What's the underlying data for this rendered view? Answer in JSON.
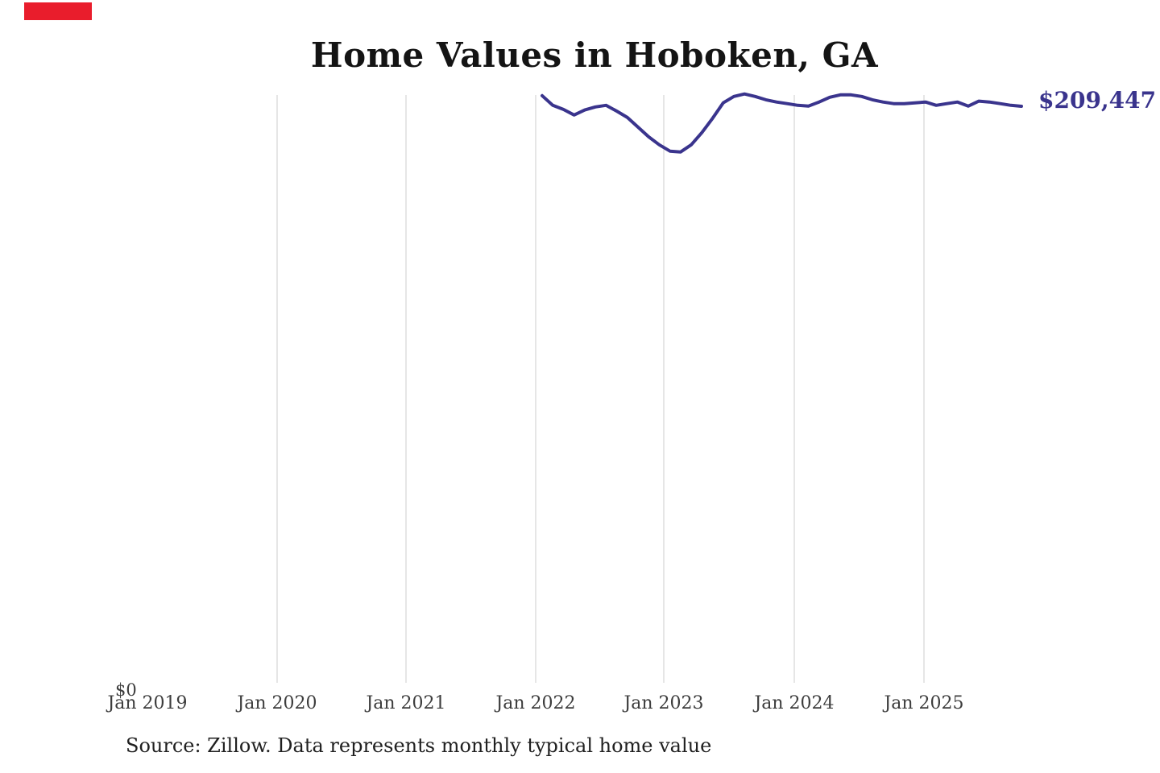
{
  "branding": {
    "logo_color": "#e91d2c"
  },
  "chart": {
    "title": "Home Values in Hoboken, GA",
    "end_label": "$209,447",
    "y_zero_label": "$0",
    "source": "Source: Zillow. Data represents monthly typical home value",
    "x_ticks": [
      "Jan 2019",
      "Jan 2020",
      "Jan 2021",
      "Jan 2022",
      "Jan 2023",
      "Jan 2024",
      "Jan 2025"
    ],
    "colors": {
      "line": "#3a348d",
      "grid": "#cccccc",
      "title_text": "#141414",
      "axis_text": "#3d3d3d",
      "source_text": "#202020",
      "annotation_text": "#3a348d"
    }
  },
  "chart_data": {
    "type": "line",
    "title": "Home Values in Hoboken, GA",
    "xlabel": "",
    "ylabel": "",
    "ylim": [
      0,
      214000
    ],
    "grid": "vertical-only",
    "legend": "none",
    "end_annotation": "$209,447",
    "x_axis_ticks": [
      "Jan 2019",
      "Jan 2020",
      "Jan 2021",
      "Jan 2022",
      "Jan 2023",
      "Jan 2024",
      "Jan 2025"
    ],
    "y_axis_ticks": [
      "$0"
    ],
    "series_name": "Monthly typical home value (USD)",
    "x": [
      "2022-01",
      "2022-02",
      "2022-03",
      "2022-04",
      "2022-05",
      "2022-06",
      "2022-07",
      "2022-08",
      "2022-09",
      "2022-10",
      "2022-11",
      "2022-12",
      "2023-01",
      "2023-02",
      "2023-03",
      "2023-04",
      "2023-05",
      "2023-06",
      "2023-07",
      "2023-08",
      "2023-09",
      "2023-10",
      "2023-11",
      "2023-12",
      "2024-01",
      "2024-02",
      "2024-03",
      "2024-04",
      "2024-05",
      "2024-06",
      "2024-07",
      "2024-08",
      "2024-09",
      "2024-10",
      "2024-11",
      "2024-12",
      "2025-01",
      "2025-02",
      "2025-03",
      "2025-04",
      "2025-05",
      "2025-06",
      "2025-07",
      "2025-08",
      "2025-09",
      "2025-10"
    ],
    "values": [
      213300,
      209800,
      208300,
      206300,
      208100,
      209200,
      209800,
      207700,
      205400,
      201900,
      198400,
      195500,
      193200,
      192900,
      195500,
      199900,
      205100,
      210700,
      213000,
      213900,
      213000,
      211800,
      211000,
      210400,
      209800,
      209500,
      211000,
      212700,
      213600,
      213600,
      213000,
      211800,
      211000,
      210400,
      210400,
      210700,
      211000,
      209800,
      210400,
      211000,
      209500,
      211300,
      211000,
      210400,
      209800,
      209447
    ]
  }
}
